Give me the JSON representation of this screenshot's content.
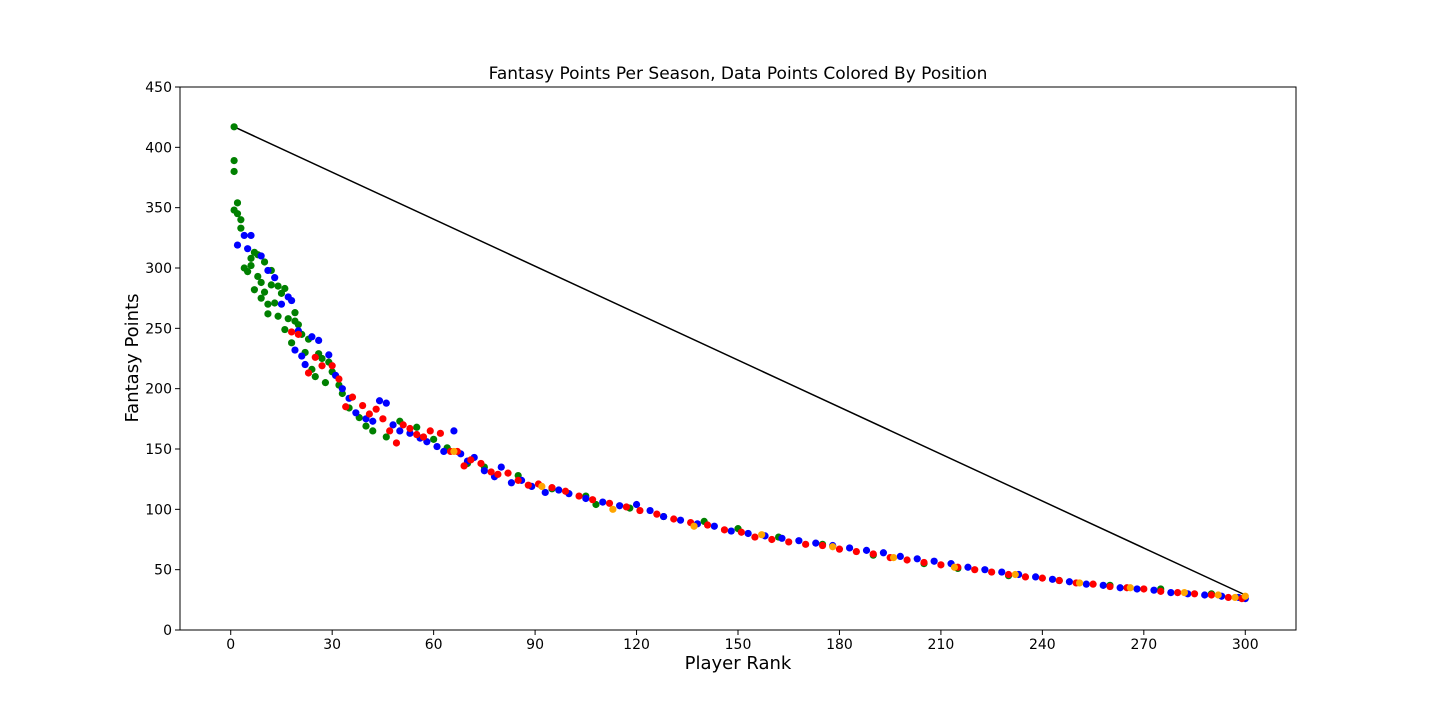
{
  "chart_data": {
    "type": "scatter",
    "title": "Fantasy Points Per Season, Data Points Colored By Position",
    "xlabel": "Player Rank",
    "ylabel": "Fantasy Points",
    "xlim": [
      -15,
      315
    ],
    "ylim": [
      0,
      450
    ],
    "xticks": [
      0,
      30,
      60,
      90,
      120,
      150,
      180,
      210,
      240,
      270,
      300
    ],
    "yticks": [
      0,
      50,
      100,
      150,
      200,
      250,
      300,
      350,
      400,
      450
    ],
    "grid": false,
    "legend": "none",
    "colors": [
      "#008000",
      "#0000ff",
      "#ff0000",
      "#ffa500"
    ],
    "trend_line": {
      "x": [
        1,
        300
      ],
      "y": [
        417,
        29
      ],
      "color": "#000000"
    },
    "series": [
      {
        "color": "#008000",
        "points": [
          [
            1,
            417
          ],
          [
            1,
            389
          ],
          [
            1,
            380
          ],
          [
            1,
            348
          ],
          [
            2,
            354
          ],
          [
            2,
            345
          ],
          [
            3,
            340
          ],
          [
            3,
            333
          ],
          [
            4,
            300
          ],
          [
            5,
            297
          ],
          [
            6,
            308
          ],
          [
            6,
            302
          ],
          [
            7,
            313
          ],
          [
            7,
            282
          ],
          [
            8,
            293
          ],
          [
            8,
            311
          ],
          [
            9,
            288
          ],
          [
            9,
            275
          ],
          [
            10,
            305
          ],
          [
            10,
            280
          ],
          [
            11,
            270
          ],
          [
            11,
            262
          ],
          [
            12,
            298
          ],
          [
            12,
            286
          ],
          [
            13,
            271
          ],
          [
            14,
            285
          ],
          [
            14,
            260
          ],
          [
            15,
            279
          ],
          [
            16,
            249
          ],
          [
            16,
            283
          ],
          [
            17,
            258
          ],
          [
            18,
            238
          ],
          [
            19,
            256
          ],
          [
            19,
            263
          ],
          [
            20,
            253
          ],
          [
            21,
            245
          ],
          [
            22,
            230
          ],
          [
            23,
            241
          ],
          [
            24,
            216
          ],
          [
            25,
            210
          ],
          [
            26,
            229
          ],
          [
            27,
            225
          ],
          [
            28,
            205
          ],
          [
            29,
            222
          ],
          [
            30,
            214
          ],
          [
            32,
            203
          ],
          [
            33,
            196
          ],
          [
            35,
            184
          ],
          [
            38,
            176
          ],
          [
            40,
            169
          ],
          [
            42,
            165
          ],
          [
            46,
            160
          ],
          [
            50,
            173
          ],
          [
            55,
            168
          ],
          [
            60,
            158
          ],
          [
            64,
            151
          ],
          [
            70,
            138
          ],
          [
            75,
            135
          ],
          [
            85,
            128
          ],
          [
            95,
            117
          ],
          [
            105,
            111
          ],
          [
            108,
            104
          ],
          [
            118,
            101
          ],
          [
            128,
            94
          ],
          [
            140,
            90
          ],
          [
            150,
            84
          ],
          [
            162,
            77
          ],
          [
            175,
            71
          ],
          [
            190,
            62
          ],
          [
            205,
            55
          ],
          [
            215,
            51
          ],
          [
            230,
            45
          ],
          [
            245,
            41
          ],
          [
            260,
            37
          ],
          [
            275,
            34
          ],
          [
            290,
            30
          ]
        ]
      },
      {
        "color": "#0000ff",
        "points": [
          [
            2,
            319
          ],
          [
            4,
            327
          ],
          [
            5,
            316
          ],
          [
            6,
            327
          ],
          [
            9,
            310
          ],
          [
            11,
            298
          ],
          [
            13,
            292
          ],
          [
            15,
            270
          ],
          [
            17,
            276
          ],
          [
            18,
            273
          ],
          [
            19,
            232
          ],
          [
            20,
            248
          ],
          [
            21,
            227
          ],
          [
            22,
            220
          ],
          [
            24,
            243
          ],
          [
            26,
            240
          ],
          [
            29,
            228
          ],
          [
            31,
            211
          ],
          [
            33,
            200
          ],
          [
            35,
            192
          ],
          [
            37,
            180
          ],
          [
            40,
            175
          ],
          [
            42,
            173
          ],
          [
            44,
            190
          ],
          [
            46,
            188
          ],
          [
            48,
            170
          ],
          [
            50,
            165
          ],
          [
            53,
            163
          ],
          [
            56,
            159
          ],
          [
            58,
            156
          ],
          [
            61,
            152
          ],
          [
            63,
            148
          ],
          [
            66,
            165
          ],
          [
            68,
            146
          ],
          [
            70,
            140
          ],
          [
            72,
            143
          ],
          [
            75,
            132
          ],
          [
            78,
            127
          ],
          [
            80,
            135
          ],
          [
            83,
            122
          ],
          [
            86,
            124
          ],
          [
            89,
            119
          ],
          [
            93,
            114
          ],
          [
            97,
            116
          ],
          [
            100,
            113
          ],
          [
            105,
            109
          ],
          [
            110,
            106
          ],
          [
            115,
            103
          ],
          [
            120,
            104
          ],
          [
            124,
            99
          ],
          [
            128,
            94
          ],
          [
            133,
            91
          ],
          [
            138,
            88
          ],
          [
            143,
            86
          ],
          [
            148,
            82
          ],
          [
            153,
            80
          ],
          [
            158,
            78
          ],
          [
            163,
            76
          ],
          [
            168,
            74
          ],
          [
            173,
            72
          ],
          [
            178,
            70
          ],
          [
            183,
            68
          ],
          [
            188,
            66
          ],
          [
            193,
            64
          ],
          [
            198,
            61
          ],
          [
            203,
            59
          ],
          [
            208,
            57
          ],
          [
            213,
            55
          ],
          [
            218,
            52
          ],
          [
            223,
            50
          ],
          [
            228,
            48
          ],
          [
            233,
            46
          ],
          [
            238,
            44
          ],
          [
            243,
            42
          ],
          [
            248,
            40
          ],
          [
            253,
            38
          ],
          [
            258,
            37
          ],
          [
            263,
            35
          ],
          [
            268,
            34
          ],
          [
            273,
            33
          ],
          [
            278,
            31
          ],
          [
            283,
            30
          ],
          [
            288,
            29
          ],
          [
            293,
            28
          ],
          [
            298,
            27
          ],
          [
            300,
            26
          ]
        ]
      },
      {
        "color": "#ff0000",
        "points": [
          [
            18,
            247
          ],
          [
            20,
            245
          ],
          [
            23,
            213
          ],
          [
            25,
            226
          ],
          [
            27,
            219
          ],
          [
            30,
            219
          ],
          [
            32,
            208
          ],
          [
            34,
            185
          ],
          [
            36,
            193
          ],
          [
            39,
            186
          ],
          [
            41,
            179
          ],
          [
            43,
            183
          ],
          [
            45,
            175
          ],
          [
            47,
            165
          ],
          [
            49,
            155
          ],
          [
            51,
            170
          ],
          [
            53,
            167
          ],
          [
            55,
            162
          ],
          [
            57,
            160
          ],
          [
            59,
            165
          ],
          [
            62,
            163
          ],
          [
            65,
            148
          ],
          [
            67,
            148
          ],
          [
            69,
            136
          ],
          [
            71,
            141
          ],
          [
            74,
            138
          ],
          [
            77,
            131
          ],
          [
            79,
            129
          ],
          [
            82,
            130
          ],
          [
            85,
            124
          ],
          [
            88,
            120
          ],
          [
            91,
            121
          ],
          [
            95,
            118
          ],
          [
            99,
            115
          ],
          [
            103,
            111
          ],
          [
            107,
            108
          ],
          [
            112,
            105
          ],
          [
            117,
            102
          ],
          [
            121,
            99
          ],
          [
            126,
            96
          ],
          [
            131,
            92
          ],
          [
            136,
            89
          ],
          [
            141,
            87
          ],
          [
            146,
            83
          ],
          [
            151,
            81
          ],
          [
            155,
            77
          ],
          [
            160,
            75
          ],
          [
            165,
            73
          ],
          [
            170,
            71
          ],
          [
            175,
            70
          ],
          [
            180,
            67
          ],
          [
            185,
            65
          ],
          [
            190,
            63
          ],
          [
            195,
            60
          ],
          [
            200,
            58
          ],
          [
            205,
            56
          ],
          [
            210,
            54
          ],
          [
            215,
            52
          ],
          [
            220,
            50
          ],
          [
            225,
            48
          ],
          [
            230,
            46
          ],
          [
            235,
            44
          ],
          [
            240,
            43
          ],
          [
            245,
            41
          ],
          [
            250,
            39
          ],
          [
            255,
            38
          ],
          [
            260,
            36
          ],
          [
            265,
            35
          ],
          [
            270,
            34
          ],
          [
            275,
            32
          ],
          [
            280,
            31
          ],
          [
            285,
            30
          ],
          [
            290,
            29
          ],
          [
            295,
            27
          ],
          [
            299,
            26
          ]
        ]
      },
      {
        "color": "#ffa500",
        "points": [
          [
            66,
            148
          ],
          [
            92,
            119
          ],
          [
            113,
            100
          ],
          [
            137,
            86
          ],
          [
            157,
            79
          ],
          [
            178,
            69
          ],
          [
            196,
            60
          ],
          [
            214,
            52
          ],
          [
            232,
            46
          ],
          [
            251,
            39
          ],
          [
            266,
            35
          ],
          [
            282,
            31
          ],
          [
            292,
            29
          ],
          [
            297,
            27
          ],
          [
            300,
            28
          ]
        ]
      }
    ]
  }
}
